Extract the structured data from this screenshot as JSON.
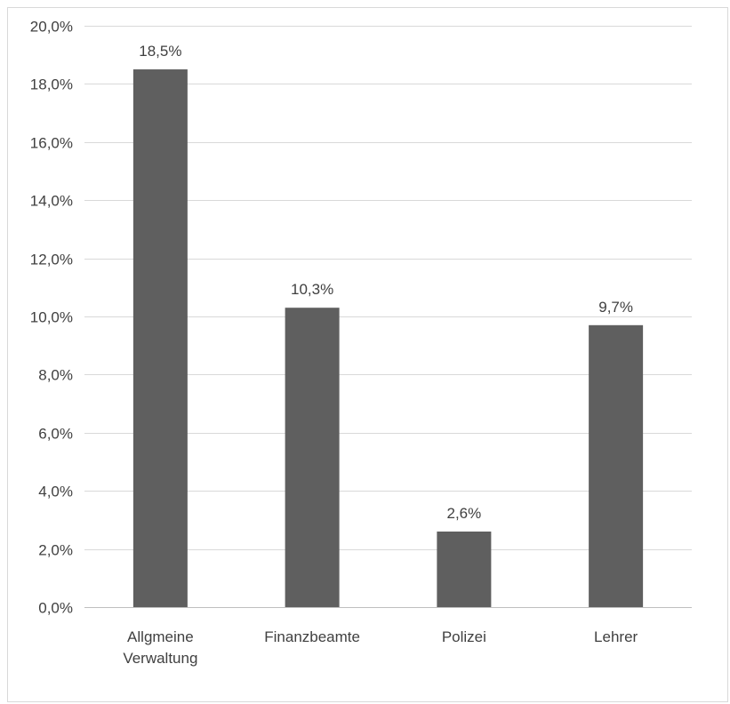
{
  "chart_data": {
    "type": "bar",
    "title": "",
    "xlabel": "",
    "ylabel": "",
    "categories": [
      [
        "Allgmeine",
        "Verwaltung"
      ],
      [
        "Finanzbeamte"
      ],
      [
        "Polizei"
      ],
      [
        "Lehrer"
      ]
    ],
    "values": [
      18.5,
      10.3,
      2.6,
      9.7
    ],
    "data_labels": [
      "18,5%",
      "10,3%",
      "2,6%",
      "9,7%"
    ],
    "ylim": [
      0,
      20
    ],
    "yticks": [
      0,
      2,
      4,
      6,
      8,
      10,
      12,
      14,
      16,
      18,
      20
    ],
    "ytick_labels": [
      "0,0%",
      "2,0%",
      "4,0%",
      "6,0%",
      "8,0%",
      "10,0%",
      "12,0%",
      "14,0%",
      "16,0%",
      "18,0%",
      "20,0%"
    ],
    "grid": true,
    "legend": "none",
    "colors": {
      "bar": "#5f5f5f",
      "grid": "#d9d9d9",
      "axis": "#bfbfbf",
      "text": "#404040"
    }
  }
}
